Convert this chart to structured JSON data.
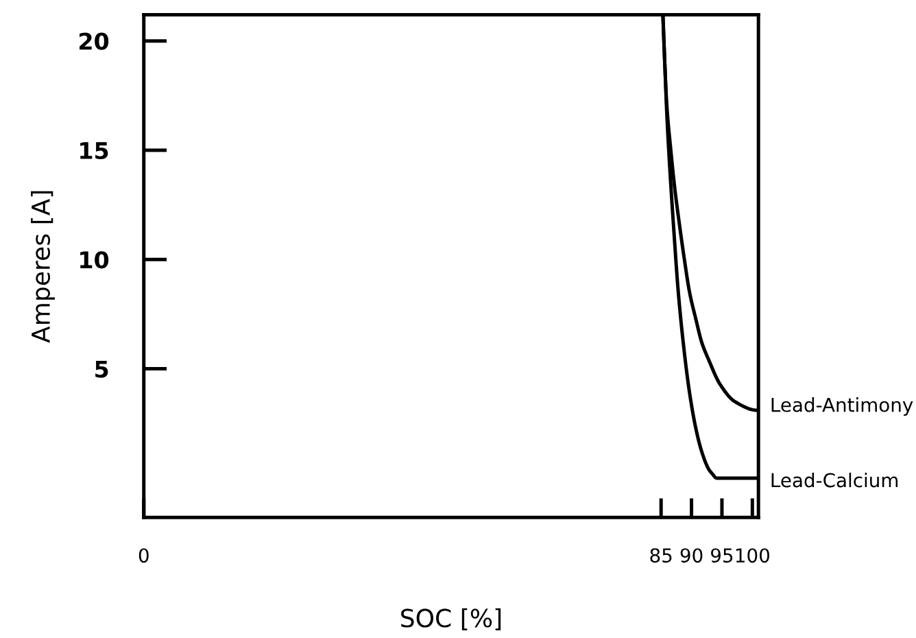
{
  "chart_data": {
    "type": "line",
    "xlabel": "SOC [%]",
    "ylabel": "Amperes [A]",
    "xlim": [
      0,
      101
    ],
    "xticks": [
      0,
      85,
      90,
      95,
      100
    ],
    "ylim": [
      -1.8,
      21.2
    ],
    "yticks": [
      5,
      10,
      15,
      20
    ],
    "marker": "none",
    "line_style": "solid",
    "series": [
      {
        "name": "Lead-Antimony",
        "color": "#000000",
        "x": [
          85.3,
          85.59,
          85.93,
          86.6,
          87.23,
          87.97,
          88.83,
          89.68,
          90.69,
          91.69,
          92.84,
          94.67,
          97.12,
          100.84,
          101.0
        ],
        "values": [
          21.2,
          19.1,
          17.1,
          15.0,
          13.3,
          11.7,
          10.0,
          8.5,
          7.3,
          6.2,
          5.4,
          4.3,
          3.5,
          3.1,
          3.1
        ]
      },
      {
        "name": "Lead-Calcium",
        "color": "#000000",
        "x": [
          85.3,
          85.59,
          85.97,
          86.49,
          87.08,
          87.83,
          88.72,
          89.68,
          90.69,
          91.69,
          92.84,
          93.4,
          94.14,
          101.0
        ],
        "values": [
          21.2,
          19.1,
          16.5,
          13.9,
          11.4,
          8.5,
          6.0,
          3.9,
          2.3,
          1.2,
          0.4,
          0.2,
          0.0,
          0.0
        ]
      }
    ]
  }
}
